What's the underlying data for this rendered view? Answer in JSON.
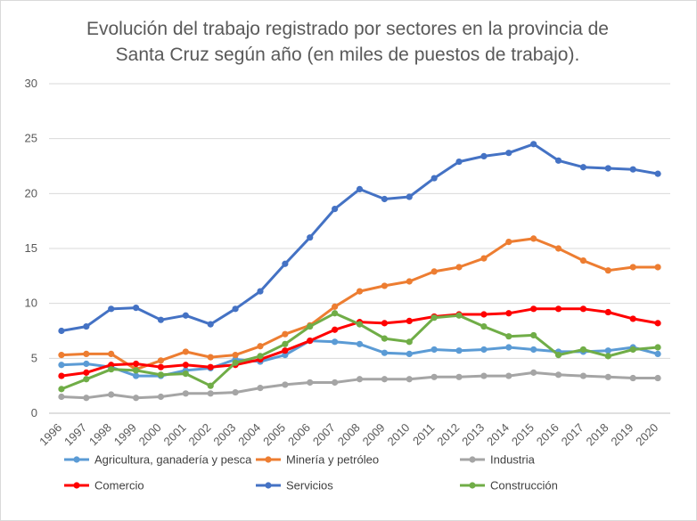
{
  "title_line1": "Evolución del trabajo registrado por sectores en la provincia de",
  "title_line2": "Santa Cruz según año (en miles de puestos de trabajo).",
  "chart_data": {
    "type": "line",
    "title": "Evolución del trabajo registrado por sectores en la provincia de Santa Cruz según año (en miles de puestos de trabajo).",
    "xlabel": "",
    "ylabel": "",
    "ylim": [
      0,
      30
    ],
    "yticks": [
      0,
      5,
      10,
      15,
      20,
      25,
      30
    ],
    "grid": "horizontal",
    "legend": "bottom",
    "x": [
      "1996",
      "1997",
      "1998",
      "1999",
      "2000",
      "2001",
      "2002",
      "2003",
      "2004",
      "2005",
      "2006",
      "2007",
      "2008",
      "2009",
      "2010",
      "2011",
      "2012",
      "2013",
      "2014",
      "2015",
      "2016",
      "2017",
      "2018",
      "2019",
      "2020"
    ],
    "series": [
      {
        "name": "Agricultura, ganadería y pesca",
        "color": "#5B9BD5",
        "values": [
          4.4,
          4.5,
          4.2,
          3.4,
          3.4,
          3.9,
          4.1,
          4.9,
          4.7,
          5.3,
          6.6,
          6.5,
          6.3,
          5.5,
          5.4,
          5.8,
          5.7,
          5.8,
          6.0,
          5.8,
          5.6,
          5.6,
          5.7,
          6.0,
          5.4
        ]
      },
      {
        "name": "Minería y petróleo",
        "color": "#ED7D31",
        "values": [
          5.3,
          5.4,
          5.4,
          4.0,
          4.8,
          5.6,
          5.1,
          5.3,
          6.1,
          7.2,
          8.0,
          9.7,
          11.1,
          11.6,
          12.0,
          12.9,
          13.3,
          14.1,
          15.6,
          15.9,
          15.0,
          13.9,
          13.0,
          13.3,
          13.3
        ]
      },
      {
        "name": "Industria",
        "color": "#A5A5A5",
        "values": [
          1.5,
          1.4,
          1.7,
          1.4,
          1.5,
          1.8,
          1.8,
          1.9,
          2.3,
          2.6,
          2.8,
          2.8,
          3.1,
          3.1,
          3.1,
          3.3,
          3.3,
          3.4,
          3.4,
          3.7,
          3.5,
          3.4,
          3.3,
          3.2,
          3.2
        ]
      },
      {
        "name": "Comercio",
        "color": "#FF0000",
        "values": [
          3.4,
          3.7,
          4.4,
          4.5,
          4.2,
          4.4,
          4.2,
          4.4,
          4.9,
          5.7,
          6.6,
          7.6,
          8.3,
          8.2,
          8.4,
          8.8,
          9.0,
          9.0,
          9.1,
          9.5,
          9.5,
          9.5,
          9.2,
          8.6,
          8.2
        ]
      },
      {
        "name": "Servicios",
        "color": "#4472C4",
        "values": [
          7.5,
          7.9,
          9.5,
          9.6,
          8.5,
          8.9,
          8.1,
          9.5,
          11.1,
          13.6,
          16.0,
          18.6,
          20.4,
          19.5,
          19.7,
          21.4,
          22.9,
          23.4,
          23.7,
          24.5,
          23.0,
          22.4,
          22.3,
          22.2,
          21.8
        ]
      },
      {
        "name": "Construcción",
        "color": "#70AD47",
        "values": [
          2.2,
          3.1,
          4.0,
          3.9,
          3.5,
          3.6,
          2.5,
          4.6,
          5.2,
          6.3,
          7.9,
          9.1,
          8.1,
          6.8,
          6.5,
          8.7,
          8.9,
          7.9,
          7.0,
          7.1,
          5.3,
          5.8,
          5.2,
          5.8,
          6.0
        ]
      }
    ]
  }
}
